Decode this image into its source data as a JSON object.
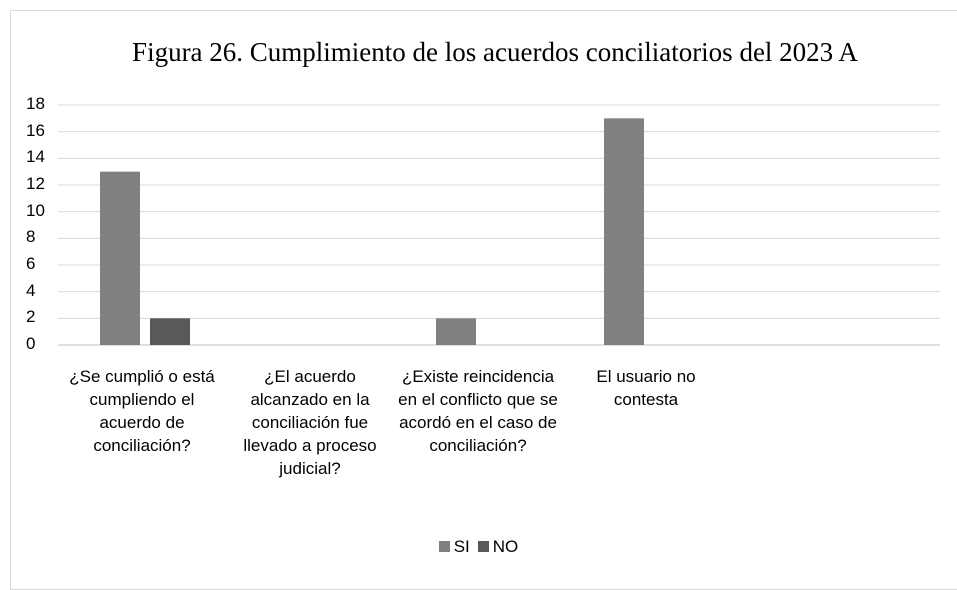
{
  "chart_data": {
    "type": "bar",
    "title": "Figura 26. Cumplimiento de los acuerdos conciliatorios del 2023 A",
    "categories": [
      "¿Se cumplió o está cumpliendo el acuerdo de conciliación?",
      "¿El acuerdo alcanzado en la conciliación fue llevado a proceso judicial?",
      "¿Existe reincidencia en el conflicto que se acordó en el caso de conciliación?",
      "El usuario no contesta"
    ],
    "series": [
      {
        "name": "SI",
        "color": "#808080",
        "values": [
          13,
          0,
          2,
          17
        ]
      },
      {
        "name": "NO",
        "color": "#595959",
        "values": [
          2,
          0,
          0,
          0
        ]
      }
    ],
    "ylim": [
      0,
      18
    ],
    "yticks": [
      0,
      2,
      4,
      6,
      8,
      10,
      12,
      14,
      16,
      18
    ],
    "grid": true,
    "legend": "bottom"
  }
}
